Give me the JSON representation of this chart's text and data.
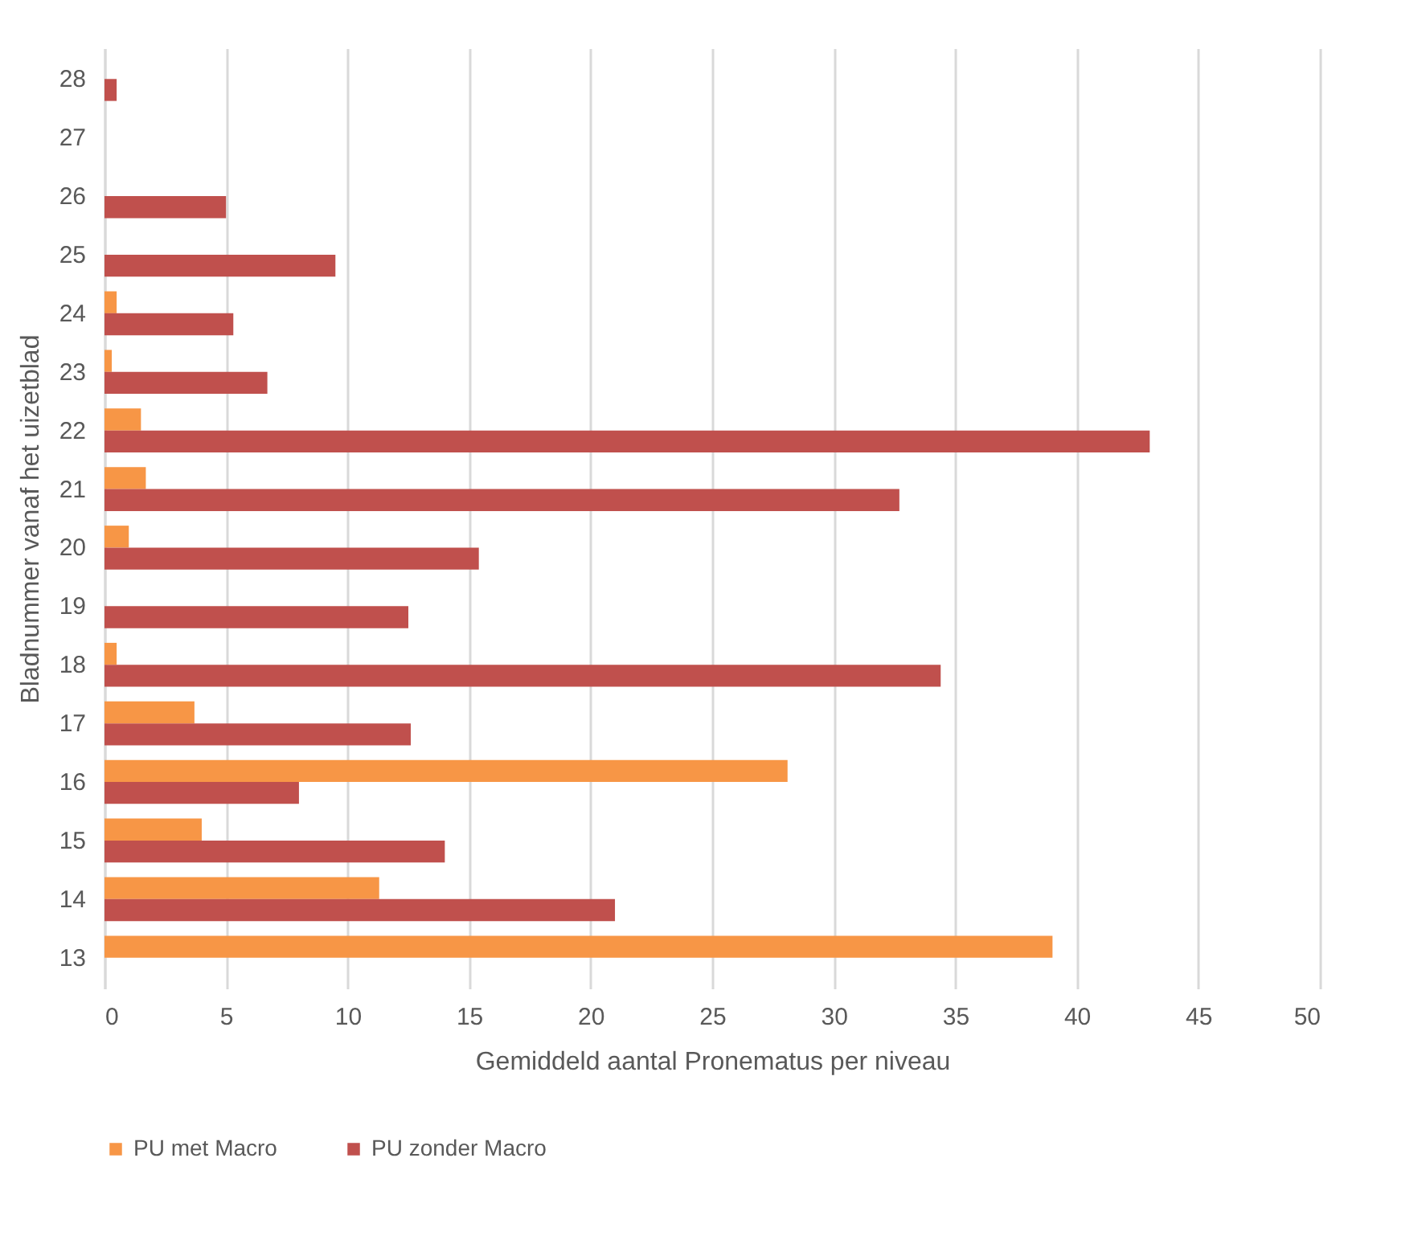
{
  "chart_data": {
    "type": "bar",
    "orientation": "horizontal",
    "xlabel": "Gemiddeld aantal Pronematus per niveau",
    "ylabel": "Bladnummer vanaf het uizetblad",
    "categories": [
      "28",
      "27",
      "26",
      "25",
      "24",
      "23",
      "22",
      "21",
      "20",
      "19",
      "18",
      "17",
      "16",
      "15",
      "14",
      "13"
    ],
    "series": [
      {
        "name": "PU met Macro",
        "color": "#f79646",
        "values": [
          null,
          null,
          null,
          null,
          0.5,
          0.3,
          1.5,
          1.7,
          1.0,
          null,
          0.5,
          3.7,
          28.1,
          4.0,
          11.3,
          39.0
        ]
      },
      {
        "name": "PU zonder Macro",
        "color": "#c0504d",
        "values": [
          0.5,
          null,
          5.0,
          9.5,
          5.3,
          6.7,
          43.0,
          32.7,
          15.4,
          12.5,
          34.4,
          12.6,
          8.0,
          14.0,
          21.0,
          null
        ]
      }
    ],
    "xlim": [
      0,
      50
    ],
    "xticks": [
      0,
      5,
      10,
      15,
      20,
      25,
      30,
      35,
      40,
      45,
      50
    ],
    "grid": "x",
    "legend": "bottom"
  }
}
